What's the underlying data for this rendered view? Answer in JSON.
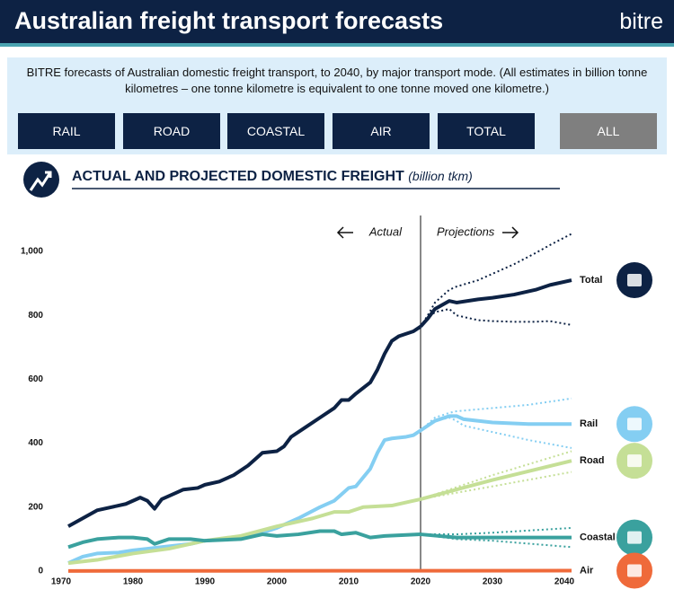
{
  "header": {
    "title": "Australian freight transport forecasts",
    "logo": "bitre"
  },
  "description": "BITRE forecasts of Australian domestic freight transport, to 2040, by major transport mode. (All estimates in billion tonne kilometres – one tonne kilometre is equivalent to one tonne moved one kilometre.)",
  "buttons": [
    "RAIL",
    "ROAD",
    "COASTAL",
    "AIR",
    "TOTAL",
    "ALL"
  ],
  "chart_data": {
    "type": "line",
    "title": "ACTUAL AND PROJECTED DOMESTIC FREIGHT",
    "subtitle": "(billion tkm)",
    "annotations": {
      "actual": "Actual",
      "projections": "Projections"
    },
    "divider": 2020,
    "xlim": [
      1970,
      2040
    ],
    "xticks": [
      1970,
      1980,
      1990,
      2000,
      2010,
      2020,
      2030,
      2040
    ],
    "ylim": [
      0,
      1000
    ],
    "yticks": [
      0,
      200,
      400,
      600,
      800,
      {
        "value": 1000,
        "label": "1,000"
      }
    ],
    "grid": false,
    "series": [
      {
        "name": "Total",
        "color": "#0d2244",
        "actual": {
          "x": [
            1971,
            1973,
            1975,
            1977,
            1979,
            1981,
            1982,
            1983,
            1984,
            1986,
            1987,
            1989,
            1990,
            1992,
            1994,
            1996,
            1998,
            2000,
            2001,
            2002,
            2004,
            2006,
            2008,
            2009,
            2010,
            2011,
            2013,
            2014,
            2015,
            2016,
            2017,
            2019,
            2020
          ],
          "values": [
            140,
            165,
            190,
            200,
            210,
            230,
            220,
            195,
            225,
            245,
            255,
            260,
            270,
            280,
            300,
            330,
            370,
            375,
            390,
            420,
            450,
            480,
            510,
            535,
            535,
            555,
            590,
            630,
            680,
            720,
            735,
            750,
            765
          ]
        },
        "projection": {
          "x": [
            2020,
            2021,
            2022,
            2024,
            2025,
            2028,
            2030,
            2033,
            2036,
            2038,
            2041
          ],
          "values": [
            765,
            790,
            820,
            845,
            840,
            850,
            855,
            865,
            880,
            895,
            910
          ],
          "upper": [
            765,
            800,
            840,
            880,
            890,
            910,
            930,
            960,
            995,
            1020,
            1055
          ],
          "lower": [
            765,
            790,
            810,
            820,
            800,
            785,
            782,
            780,
            780,
            782,
            770
          ]
        }
      },
      {
        "name": "Rail",
        "color": "#84cef2",
        "actual": {
          "x": [
            1971,
            1973,
            1975,
            1978,
            1980,
            1982,
            1984,
            1988,
            1990,
            1993,
            1996,
            1998,
            2000,
            2003,
            2006,
            2008,
            2010,
            2011,
            2013,
            2014,
            2015,
            2016,
            2018,
            2019,
            2020
          ],
          "values": [
            25,
            45,
            55,
            58,
            65,
            70,
            75,
            85,
            95,
            100,
            110,
            120,
            135,
            165,
            200,
            220,
            260,
            265,
            320,
            370,
            410,
            415,
            420,
            425,
            440
          ]
        },
        "projection": {
          "x": [
            2020,
            2022,
            2024,
            2025,
            2026,
            2030,
            2035,
            2041
          ],
          "values": [
            440,
            470,
            485,
            485,
            475,
            465,
            460,
            460
          ],
          "upper": [
            440,
            480,
            495,
            500,
            502,
            510,
            520,
            540
          ],
          "lower": [
            440,
            470,
            480,
            470,
            455,
            435,
            410,
            385
          ]
        }
      },
      {
        "name": "Road",
        "color": "#c5df96",
        "actual": {
          "x": [
            1971,
            1975,
            1980,
            1985,
            1990,
            1995,
            2000,
            2005,
            2008,
            2010,
            2012,
            2016,
            2020
          ],
          "values": [
            25,
            35,
            55,
            70,
            95,
            110,
            140,
            165,
            185,
            185,
            200,
            205,
            225
          ]
        },
        "projection": {
          "x": [
            2020,
            2030,
            2041
          ],
          "values": [
            225,
            285,
            345
          ],
          "upper": [
            225,
            300,
            375
          ],
          "lower": [
            225,
            265,
            310
          ]
        }
      },
      {
        "name": "Coastal",
        "color": "#3aa19e",
        "actual": {
          "x": [
            1971,
            1973,
            1975,
            1978,
            1980,
            1982,
            1983,
            1985,
            1988,
            1990,
            1995,
            1998,
            2000,
            2003,
            2006,
            2008,
            2009,
            2011,
            2013,
            2015,
            2020
          ],
          "values": [
            75,
            90,
            100,
            105,
            105,
            100,
            85,
            100,
            100,
            95,
            100,
            115,
            110,
            115,
            125,
            125,
            115,
            120,
            105,
            110,
            115
          ]
        },
        "projection": {
          "x": [
            2020,
            2025,
            2030,
            2041
          ],
          "values": [
            115,
            105,
            105,
            105
          ],
          "upper": [
            115,
            115,
            120,
            135
          ],
          "lower": [
            115,
            100,
            95,
            75
          ]
        }
      },
      {
        "name": "Air",
        "color": "#ef6a3a",
        "actual": {
          "x": [
            1971,
            2020
          ],
          "values": [
            0.5,
            1
          ]
        },
        "projection": {
          "x": [
            2020,
            2041
          ],
          "values": [
            1,
            1.5
          ],
          "upper": [
            1,
            1.5
          ],
          "lower": [
            1,
            1.5
          ]
        }
      }
    ]
  }
}
